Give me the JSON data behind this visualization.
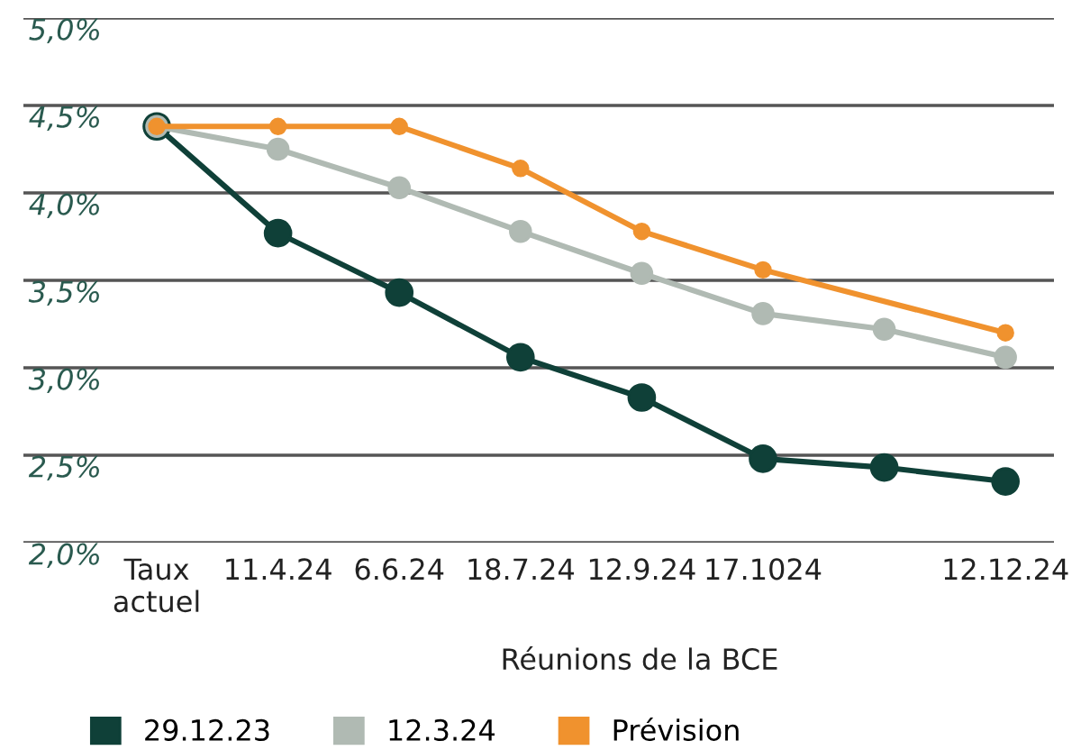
{
  "chart_data": {
    "type": "line",
    "xlabel": "Réunions de la BCE",
    "categories": [
      "Taux\nactuel",
      "11.4.24",
      "6.6.24",
      "18.7.24",
      "12.9.24",
      "17.1024",
      null,
      "12.12.24"
    ],
    "ylim": [
      2.0,
      5.0
    ],
    "yticks": [
      {
        "value": 2.0,
        "label": "2,0%"
      },
      {
        "value": 2.5,
        "label": "2,5%"
      },
      {
        "value": 3.0,
        "label": "3,0%"
      },
      {
        "value": 3.5,
        "label": "3,5%"
      },
      {
        "value": 4.0,
        "label": "4,0%"
      },
      {
        "value": 4.5,
        "label": "4,5%"
      },
      {
        "value": 5.0,
        "label": "5,0%"
      }
    ],
    "grid": "y",
    "legend": "bottom left",
    "marker": "circle",
    "line_style": "solid",
    "series": [
      {
        "name": "29.12.23",
        "color": "#0f4038",
        "values": [
          4.38,
          3.77,
          3.43,
          3.06,
          2.83,
          2.48,
          2.43,
          2.35
        ]
      },
      {
        "name": "12.3.24",
        "color": "#b0bab3",
        "values": [
          4.38,
          4.25,
          4.03,
          3.78,
          3.54,
          3.31,
          3.22,
          3.06
        ]
      },
      {
        "name": "Prévision",
        "color": "#f0922e",
        "values": [
          4.38,
          4.38,
          4.38,
          4.14,
          3.78,
          3.56,
          null,
          3.2
        ]
      }
    ]
  }
}
